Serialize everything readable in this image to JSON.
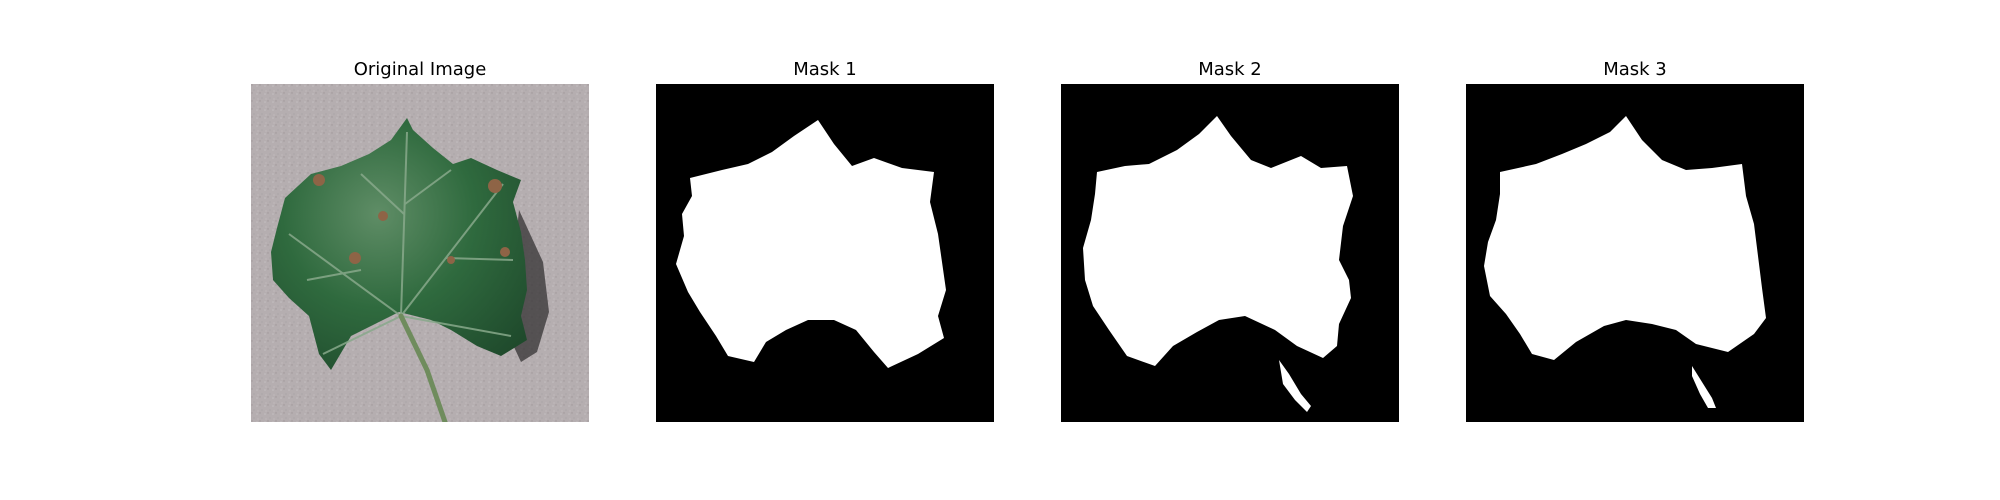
{
  "figure": {
    "panels": [
      {
        "title": "Original Image",
        "kind": "photo",
        "subject": "leaf-photo"
      },
      {
        "title": "Mask 1",
        "kind": "mask"
      },
      {
        "title": "Mask 2",
        "kind": "mask"
      },
      {
        "title": "Mask 3",
        "kind": "mask"
      }
    ]
  },
  "colors": {
    "page_background": "#ffffff",
    "mask_background": "#000000",
    "mask_foreground": "#ffffff",
    "photo_background": "#b5aeb0",
    "leaf_dark": "#1f4a2c",
    "leaf_mid": "#2f6a3e",
    "leaf_light": "#5f8d66",
    "leaf_vein": "#88a98b",
    "leaf_spot": "#8e6446",
    "leaf_shadow": "#343233",
    "stem": "#6f8c5d"
  }
}
